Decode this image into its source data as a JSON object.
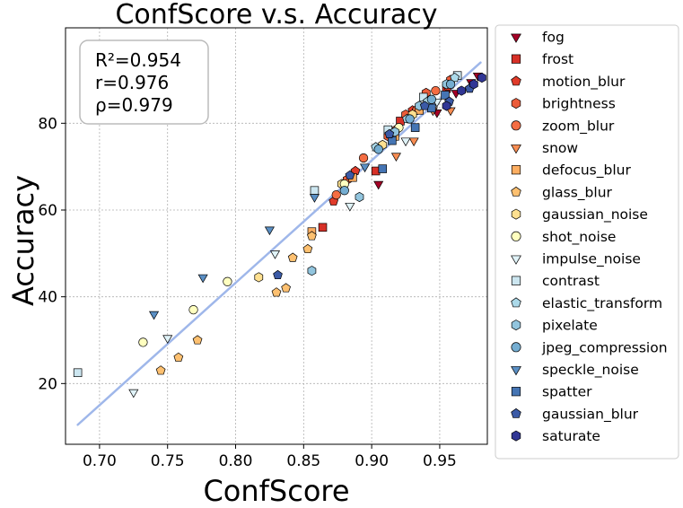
{
  "chart_data": {
    "type": "scatter",
    "title": "ConfScore  v.s.  Accuracy",
    "xlabel": "ConfScore",
    "ylabel": "Accuracy",
    "xlim": [
      0.675,
      0.985
    ],
    "ylim": [
      6,
      102
    ],
    "xticks": [
      0.7,
      0.75,
      0.8,
      0.85,
      0.9,
      0.95
    ],
    "xtick_labels": [
      "0.70",
      "0.75",
      "0.80",
      "0.85",
      "0.90",
      "0.95"
    ],
    "yticks": [
      20,
      40,
      60,
      80
    ],
    "ytick_labels": [
      "20",
      "40",
      "60",
      "80"
    ],
    "grid": true,
    "legend_position": "outside-right",
    "stats": {
      "r2": "R²=0.954",
      "r": "r=0.976",
      "rho": "ρ=0.979"
    },
    "fit_line": {
      "x": [
        0.684,
        0.98
      ],
      "y": [
        10.5,
        94
      ],
      "color": "#9fb7ea"
    },
    "series": [
      {
        "name": "fog",
        "marker": "triangle-down",
        "color": "#a50026",
        "points": [
          [
            0.905,
            66
          ],
          [
            0.948,
            82.5
          ],
          [
            0.962,
            87
          ],
          [
            0.973,
            89.5
          ],
          [
            0.978,
            91
          ]
        ]
      },
      {
        "name": "frost",
        "marker": "square",
        "color": "#d73027",
        "points": [
          [
            0.864,
            56
          ],
          [
            0.903,
            69
          ],
          [
            0.921,
            80.5
          ],
          [
            0.935,
            83.5
          ],
          [
            0.955,
            88
          ]
        ]
      },
      {
        "name": "motion_blur",
        "marker": "pentagon",
        "color": "#e03b2a",
        "points": [
          [
            0.872,
            62
          ],
          [
            0.888,
            69
          ],
          [
            0.915,
            78
          ],
          [
            0.93,
            83
          ],
          [
            0.956,
            88.5
          ]
        ]
      },
      {
        "name": "brightness",
        "marker": "hexagon",
        "color": "#eb5c3a",
        "points": [
          [
            0.882,
            67
          ],
          [
            0.912,
            77
          ],
          [
            0.925,
            82
          ],
          [
            0.94,
            87
          ],
          [
            0.958,
            90
          ]
        ]
      },
      {
        "name": "zoom_blur",
        "marker": "circle",
        "color": "#f46d43",
        "points": [
          [
            0.874,
            63.5
          ],
          [
            0.894,
            72
          ],
          [
            0.918,
            78.5
          ],
          [
            0.933,
            83
          ],
          [
            0.947,
            87.5
          ]
        ]
      },
      {
        "name": "snow",
        "marker": "triangle-down",
        "color": "#f88d52",
        "points": [
          [
            0.918,
            72.5
          ],
          [
            0.931,
            76
          ],
          [
            0.945,
            83
          ],
          [
            0.958,
            83
          ]
        ]
      },
      {
        "name": "defocus_blur",
        "marker": "square",
        "color": "#fdae61",
        "points": [
          [
            0.856,
            55
          ],
          [
            0.886,
            67.5
          ],
          [
            0.917,
            77
          ],
          [
            0.935,
            83
          ],
          [
            0.957,
            89
          ]
        ]
      },
      {
        "name": "glass_blur",
        "marker": "pentagon",
        "color": "#fdc070",
        "points": [
          [
            0.745,
            23
          ],
          [
            0.758,
            26
          ],
          [
            0.772,
            30
          ],
          [
            0.83,
            41
          ],
          [
            0.837,
            42
          ],
          [
            0.842,
            49
          ],
          [
            0.853,
            51
          ],
          [
            0.856,
            54
          ]
        ]
      },
      {
        "name": "gaussian_noise",
        "marker": "hexagon",
        "color": "#fee090",
        "points": [
          [
            0.817,
            44.5
          ],
          [
            0.878,
            66
          ],
          [
            0.908,
            75
          ],
          [
            0.93,
            82
          ]
        ]
      },
      {
        "name": "shot_noise",
        "marker": "circle",
        "color": "#ffffbf",
        "points": [
          [
            0.732,
            29.5
          ],
          [
            0.769,
            37
          ],
          [
            0.794,
            43.5
          ],
          [
            0.88,
            66
          ],
          [
            0.92,
            79
          ]
        ]
      },
      {
        "name": "impulse_noise",
        "marker": "triangle-down",
        "color": "#e0f3f8",
        "points": [
          [
            0.725,
            18
          ],
          [
            0.75,
            30.5
          ],
          [
            0.829,
            50
          ],
          [
            0.884,
            61
          ],
          [
            0.925,
            76
          ],
          [
            0.948,
            85
          ]
        ]
      },
      {
        "name": "contrast",
        "marker": "square",
        "color": "#cce6f0",
        "points": [
          [
            0.684,
            22.5
          ],
          [
            0.858,
            64.5
          ],
          [
            0.912,
            78.5
          ],
          [
            0.938,
            86
          ],
          [
            0.963,
            91
          ]
        ]
      },
      {
        "name": "elastic_transform",
        "marker": "pentagon",
        "color": "#abd9e9",
        "points": [
          [
            0.903,
            74.5
          ],
          [
            0.926,
            81
          ],
          [
            0.941,
            85
          ],
          [
            0.961,
            90.5
          ]
        ]
      },
      {
        "name": "pixelate",
        "marker": "hexagon",
        "color": "#92c5de",
        "points": [
          [
            0.856,
            46
          ],
          [
            0.891,
            63
          ],
          [
            0.917,
            78
          ],
          [
            0.935,
            84
          ],
          [
            0.955,
            89
          ]
        ]
      },
      {
        "name": "jpeg_compression",
        "marker": "circle",
        "color": "#74add1",
        "points": [
          [
            0.88,
            64.5
          ],
          [
            0.905,
            74
          ],
          [
            0.928,
            81
          ],
          [
            0.944,
            85.5
          ],
          [
            0.958,
            89
          ]
        ]
      },
      {
        "name": "speckle_noise",
        "marker": "triangle-down",
        "color": "#5a8fc4",
        "points": [
          [
            0.74,
            36
          ],
          [
            0.776,
            44.5
          ],
          [
            0.825,
            55.5
          ],
          [
            0.858,
            63
          ],
          [
            0.895,
            70
          ]
        ]
      },
      {
        "name": "spatter",
        "marker": "square",
        "color": "#4575b4",
        "points": [
          [
            0.908,
            69.5
          ],
          [
            0.915,
            76
          ],
          [
            0.932,
            79
          ],
          [
            0.944,
            83.5
          ],
          [
            0.954,
            86.5
          ]
        ]
      },
      {
        "name": "gaussian_blur",
        "marker": "pentagon",
        "color": "#3b5aa6",
        "points": [
          [
            0.831,
            45
          ],
          [
            0.884,
            68
          ],
          [
            0.913,
            77.5
          ],
          [
            0.939,
            84
          ],
          [
            0.957,
            85
          ],
          [
            0.972,
            88
          ]
        ]
      },
      {
        "name": "saturate",
        "marker": "hexagon",
        "color": "#313695",
        "points": [
          [
            0.955,
            84
          ],
          [
            0.966,
            87.5
          ],
          [
            0.975,
            89
          ],
          [
            0.981,
            90.5
          ]
        ]
      }
    ]
  }
}
